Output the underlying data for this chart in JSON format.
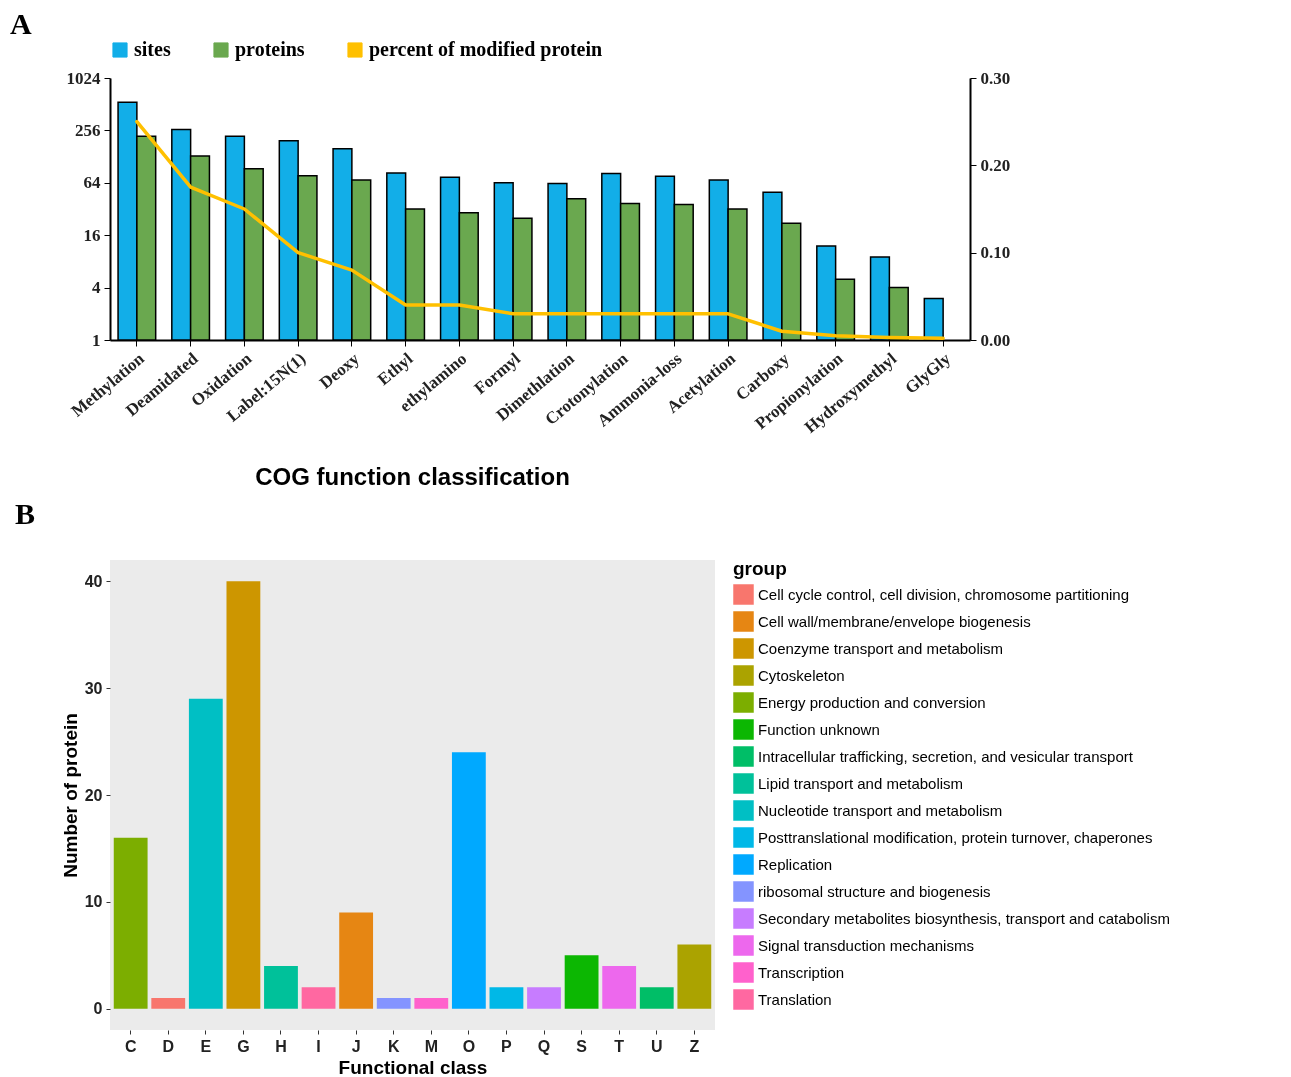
{
  "chart_data": [
    {
      "type": "bar",
      "annotations": [
        "A"
      ],
      "legend": "top",
      "categories": [
        "Methylation",
        "Deamidated",
        "Oxidation",
        "Label:15N(1)",
        "Deoxy",
        "Ethyl",
        "ethylamino",
        "Formyl",
        "Dimethlation",
        "Crotonylation",
        "Ammonia-loss",
        "Acetylation",
        "Carboxy",
        "Propionylation",
        "Hydroxymethyl",
        "GlyGly"
      ],
      "series": [
        {
          "name": "sites",
          "color": "#12aee8",
          "values": [
            540,
            263,
            220,
            195,
            158,
            83,
            74,
            64,
            63,
            82,
            76,
            69,
            50,
            12,
            9,
            3
          ]
        },
        {
          "name": "proteins",
          "color": "#6aa84f",
          "values": [
            220,
            130,
            93,
            77,
            69,
            32,
            29,
            25,
            42,
            37,
            36,
            32,
            22,
            5,
            4,
            null
          ]
        },
        {
          "name": "percent of modified protein",
          "type": "line",
          "axis": "y2",
          "color": "#ffc000",
          "values": [
            0.25,
            0.175,
            0.15,
            0.1,
            0.08,
            0.04,
            0.04,
            0.03,
            0.03,
            0.03,
            0.03,
            0.03,
            0.01,
            0.005,
            0.003,
            0.002
          ]
        }
      ],
      "log": "y",
      "ylim": [
        1,
        1024
      ],
      "yticks": [
        1,
        4,
        16,
        64,
        256,
        1024
      ],
      "y2lim": [
        0,
        0.3
      ],
      "y2ticks": [
        {
          "value": 0,
          "label": "0.00"
        },
        {
          "value": 0.1,
          "label": "0.10"
        },
        {
          "value": 0.2,
          "label": "0.20"
        },
        {
          "value": 0.3,
          "label": "0.30"
        }
      ]
    },
    {
      "type": "bar",
      "title": "COG function classification",
      "annotations": [
        "B"
      ],
      "xlabel": "Functional class",
      "ylabel": "Number of protein",
      "legend_title": "group",
      "legend": "right",
      "categories": [
        "C",
        "D",
        "E",
        "G",
        "H",
        "I",
        "J",
        "K",
        "M",
        "O",
        "P",
        "Q",
        "S",
        "T",
        "U",
        "Z"
      ],
      "series": [
        {
          "name": "Cell cycle control, cell division, chromosome partitioning",
          "color": "#f8766d",
          "values": [
            null,
            1,
            null,
            null,
            null,
            null,
            null,
            null,
            null,
            null,
            null,
            null,
            null,
            null,
            null,
            null
          ]
        },
        {
          "name": "Cell wall/membrane/envelope biogenesis",
          "color": "#e68613",
          "values": [
            null,
            null,
            null,
            null,
            null,
            null,
            9,
            null,
            null,
            null,
            null,
            null,
            null,
            null,
            null,
            null
          ]
        },
        {
          "name": "Coenzyme transport and metabolism",
          "color": "#cd9600",
          "values": [
            null,
            null,
            null,
            40,
            null,
            null,
            null,
            null,
            null,
            null,
            null,
            null,
            null,
            null,
            null,
            null
          ]
        },
        {
          "name": "Cytoskeleton",
          "color": "#aba300",
          "values": [
            null,
            null,
            null,
            null,
            null,
            null,
            null,
            null,
            null,
            null,
            null,
            null,
            null,
            null,
            null,
            6
          ]
        },
        {
          "name": "Energy production and conversion",
          "color": "#7cae00",
          "values": [
            16,
            null,
            null,
            null,
            null,
            null,
            null,
            null,
            null,
            null,
            null,
            null,
            null,
            null,
            null,
            null
          ]
        },
        {
          "name": "Function unknown",
          "color": "#0cb702",
          "values": [
            null,
            null,
            null,
            null,
            null,
            null,
            null,
            null,
            null,
            null,
            null,
            null,
            5,
            null,
            null,
            null
          ]
        },
        {
          "name": "Intracellular trafficking, secretion, and vesicular transport",
          "color": "#00be67",
          "values": [
            null,
            null,
            null,
            null,
            null,
            null,
            null,
            null,
            null,
            null,
            null,
            null,
            null,
            null,
            2,
            null
          ]
        },
        {
          "name": "Lipid transport and metabolism",
          "color": "#00c19a",
          "values": [
            null,
            null,
            null,
            null,
            4,
            null,
            null,
            null,
            null,
            null,
            null,
            null,
            null,
            null,
            null,
            null
          ]
        },
        {
          "name": "Nucleotide transport and metabolism",
          "color": "#00bfc4",
          "values": [
            null,
            null,
            29,
            null,
            null,
            null,
            null,
            null,
            null,
            null,
            null,
            null,
            null,
            null,
            null,
            null
          ]
        },
        {
          "name": "Posttranslational modification, protein turnover, chaperones",
          "color": "#00b8e7",
          "values": [
            null,
            null,
            null,
            null,
            null,
            null,
            null,
            null,
            null,
            null,
            2,
            null,
            null,
            null,
            null,
            null
          ]
        },
        {
          "name": "Replication",
          "color": "#00a9ff",
          "values": [
            null,
            null,
            null,
            null,
            null,
            null,
            null,
            null,
            null,
            24,
            null,
            null,
            null,
            null,
            null,
            null
          ]
        },
        {
          "name": "ribosomal structure and biogenesis",
          "color": "#8494ff",
          "values": [
            null,
            null,
            null,
            null,
            null,
            null,
            null,
            1,
            null,
            null,
            null,
            null,
            null,
            null,
            null,
            null
          ]
        },
        {
          "name": "Secondary metabolites biosynthesis, transport and catabolism",
          "color": "#c77cff",
          "values": [
            null,
            null,
            null,
            null,
            null,
            null,
            null,
            null,
            null,
            null,
            null,
            2,
            null,
            null,
            null,
            null
          ]
        },
        {
          "name": "Signal transduction mechanisms",
          "color": "#ed68ed",
          "values": [
            null,
            null,
            null,
            null,
            null,
            null,
            null,
            null,
            null,
            null,
            null,
            null,
            null,
            4,
            null,
            null
          ]
        },
        {
          "name": "Transcription",
          "color": "#ff61cc",
          "values": [
            null,
            null,
            null,
            null,
            null,
            null,
            null,
            null,
            1,
            null,
            null,
            null,
            null,
            null,
            null,
            null
          ]
        },
        {
          "name": "Translation",
          "color": "#ff68a1",
          "values": [
            null,
            null,
            null,
            null,
            null,
            2,
            null,
            null,
            null,
            null,
            null,
            null,
            null,
            null,
            null,
            null
          ]
        }
      ],
      "ylim": [
        -2,
        42
      ],
      "yticks": [
        0,
        10,
        20,
        30,
        40
      ]
    }
  ]
}
